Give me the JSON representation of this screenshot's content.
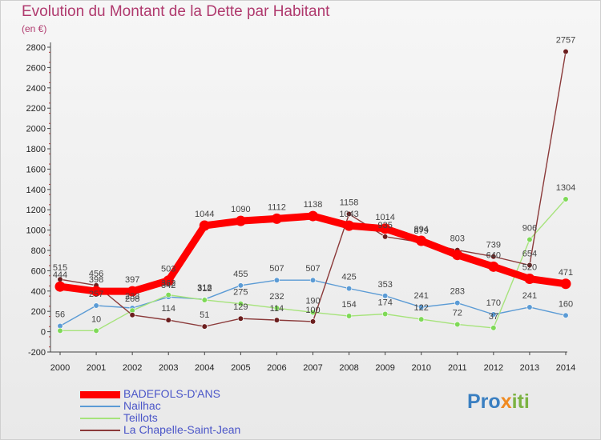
{
  "title": "Evolution du Montant de la Dette par Habitant",
  "subtitle": "(en €)",
  "logo": {
    "part1": "Pro",
    "part2": "x",
    "part3": "iti"
  },
  "chart_data": {
    "type": "line",
    "x": [
      "2000",
      "2001",
      "2002",
      "2003",
      "2004",
      "2005",
      "2006",
      "2007",
      "2008",
      "2009",
      "2010",
      "2011",
      "2012",
      "2013",
      "2014"
    ],
    "ylim": [
      -200,
      2800
    ],
    "yticks": [
      -200,
      0,
      200,
      400,
      600,
      800,
      1000,
      1200,
      1400,
      1600,
      1800,
      2000,
      2200,
      2400,
      2600,
      2800
    ],
    "grid": false,
    "legend_position": "bottom-left",
    "series": [
      {
        "name": "BADEFOLS-D'ANS",
        "color": "#ff0000",
        "point_color": "#ff0000",
        "values": [
          444,
          398,
          397,
          503,
          1044,
          1090,
          1112,
          1138,
          1043,
          1014,
          894,
          755,
          640,
          520,
          471
        ],
        "labels": [
          "444",
          "398",
          "397",
          "503",
          "1044",
          "1090",
          "1112",
          "1138",
          "1043",
          "1014",
          "894",
          "",
          "640",
          "520",
          "471"
        ]
      },
      {
        "name": "Nailhac",
        "color": "#5b9bd5",
        "point_color": "#5b9bd5",
        "values": [
          56,
          257,
          233,
          342,
          318,
          455,
          507,
          507,
          425,
          353,
          241,
          283,
          170,
          241,
          160
        ],
        "labels": [
          "56",
          "257",
          "233",
          "342",
          "318",
          "455",
          "507",
          "507",
          "425",
          "353",
          "241",
          "283",
          "170",
          "241",
          "160"
        ]
      },
      {
        "name": "Teillots",
        "color": "#a6e37b",
        "point_color": "#7ed957",
        "values": [
          10,
          10,
          208,
          362,
          312,
          275,
          232,
          190,
          154,
          174,
          122,
          72,
          37,
          906,
          1304
        ],
        "labels": [
          "",
          "10",
          "208",
          "362",
          "312",
          "275",
          "232",
          "190",
          "154",
          "174",
          "122",
          "72",
          "37",
          "906",
          "1304"
        ]
      },
      {
        "name": "La Chapelle-Saint-Jean",
        "color": "#8b3a3a",
        "point_color": "#6b1e1e",
        "values": [
          515,
          456,
          164,
          114,
          51,
          129,
          114,
          100,
          1158,
          935,
          879,
          803,
          739,
          654,
          2757
        ],
        "labels": [
          "515",
          "456",
          "",
          "114",
          "51",
          "129",
          "114",
          "100",
          "1158",
          "935",
          "879",
          "803",
          "739",
          "654",
          "2757"
        ]
      }
    ]
  }
}
